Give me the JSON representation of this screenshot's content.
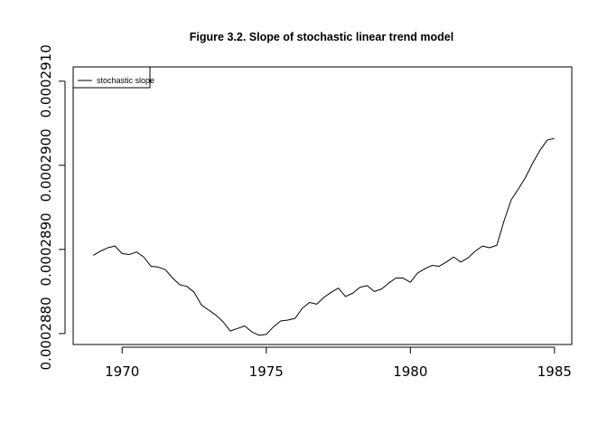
{
  "chart_data": {
    "type": "line",
    "title": "Figure 3.2. Slope of stochastic linear trend model",
    "xlabel": "",
    "ylabel": "",
    "xlim": [
      1968.3,
      1985.6
    ],
    "ylim": [
      0.00028787,
      0.00029117
    ],
    "x_ticks": [
      1970,
      1975,
      1980,
      1985
    ],
    "x_tick_labels": [
      "1970",
      "1975",
      "1980",
      "1985"
    ],
    "y_ticks": [
      0.000288,
      0.000289,
      0.00029,
      0.000291
    ],
    "y_tick_labels": [
      "0.0002880",
      "0.0002890",
      "0.0002900",
      "0.0002910"
    ],
    "grid": false,
    "legend": {
      "placement": "top-left",
      "entries": [
        "stochastic slope"
      ]
    },
    "series": [
      {
        "name": "stochastic slope",
        "color": "#000000",
        "x": [
          1969.0,
          1969.25,
          1969.5,
          1969.75,
          1970.0,
          1970.25,
          1970.5,
          1970.75,
          1971.0,
          1971.25,
          1971.5,
          1971.75,
          1972.0,
          1972.25,
          1972.5,
          1972.75,
          1973.0,
          1973.25,
          1973.5,
          1973.75,
          1974.0,
          1974.25,
          1974.5,
          1974.75,
          1975.0,
          1975.25,
          1975.5,
          1975.75,
          1976.0,
          1976.25,
          1976.5,
          1976.75,
          1977.0,
          1977.25,
          1977.5,
          1977.75,
          1978.0,
          1978.25,
          1978.5,
          1978.75,
          1979.0,
          1979.25,
          1979.5,
          1979.75,
          1980.0,
          1980.25,
          1980.5,
          1980.75,
          1981.0,
          1981.25,
          1981.5,
          1981.75,
          1982.0,
          1982.25,
          1982.5,
          1982.75,
          1983.0,
          1983.25,
          1983.5,
          1983.75,
          1984.0,
          1984.25,
          1984.5,
          1984.75,
          1985.0
        ],
        "values": [
          0.00028893,
          0.00028898,
          0.00028902,
          0.00028904,
          0.00028895,
          0.00028894,
          0.00028897,
          0.00028891,
          0.0002888,
          0.00028879,
          0.00028876,
          0.00028866,
          0.00028858,
          0.00028856,
          0.00028849,
          0.00028834,
          0.00028828,
          0.00028822,
          0.00028814,
          0.00028803,
          0.00028806,
          0.00028809,
          0.00028802,
          0.00028798,
          0.00028799,
          0.00028808,
          0.00028815,
          0.00028816,
          0.00028818,
          0.0002883,
          0.00028837,
          0.00028835,
          0.00028843,
          0.00028849,
          0.00028854,
          0.00028844,
          0.00028848,
          0.00028855,
          0.00028857,
          0.0002885,
          0.00028853,
          0.0002886,
          0.00028866,
          0.00028866,
          0.00028861,
          0.00028872,
          0.00028877,
          0.00028881,
          0.0002888,
          0.00028885,
          0.00028891,
          0.00028885,
          0.0002889,
          0.00028898,
          0.00028904,
          0.00028902,
          0.00028905,
          0.00028934,
          0.00028959,
          0.00028972,
          0.00028986,
          0.00029003,
          0.00029018,
          0.0002903,
          0.00029032
        ]
      }
    ]
  }
}
